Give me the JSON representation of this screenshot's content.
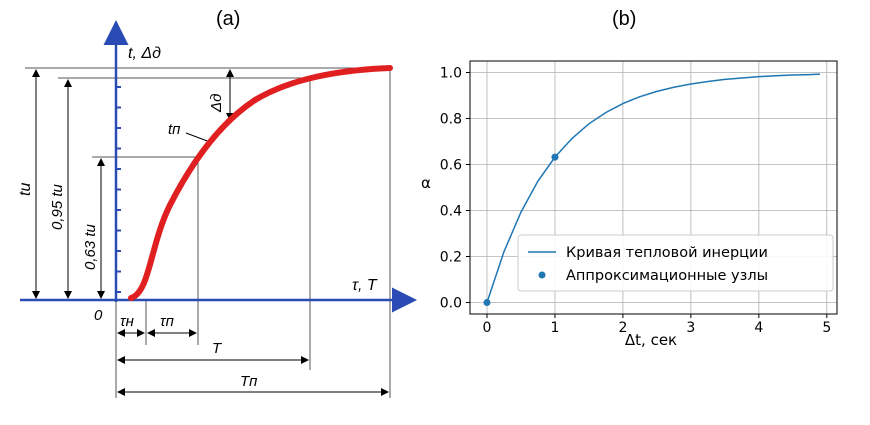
{
  "panel_a": {
    "label": "(a)",
    "y_axis_label": "t, Δд",
    "x_axis_label": "τ, T",
    "origin_label": "0",
    "curve_label": "tп",
    "delta_label": "Δд",
    "dim_full_label": "tи",
    "dim_095_label": "0,95 tи",
    "dim_063_label": "0,63 tи",
    "tau_n_label": "τн",
    "tau_p_label": "τп",
    "T_label": "T",
    "Tp_label": "Tп",
    "curve_color": "#e02020",
    "axis_color": "#2a4bb3"
  },
  "panel_b": {
    "label": "(b)",
    "line_color": "#1f77b4",
    "point_color": "#1f77b4"
  },
  "chart_data": {
    "type": "line",
    "xlabel": "Δt, сек",
    "ylabel": "α",
    "xlim": [
      -0.25,
      5.15
    ],
    "ylim": [
      -0.05,
      1.05
    ],
    "xticks": [
      "0",
      "1",
      "2",
      "3",
      "4",
      "5"
    ],
    "yticks": [
      "0.0",
      "0.2",
      "0.4",
      "0.6",
      "0.8",
      "1.0"
    ],
    "grid": true,
    "legend_position": "lower-right",
    "series": [
      {
        "name": "Кривая тепловой инерции",
        "kind": "line",
        "x": [
          0,
          0.25,
          0.5,
          0.75,
          1.0,
          1.25,
          1.5,
          1.75,
          2.0,
          2.25,
          2.5,
          2.75,
          3.0,
          3.25,
          3.5,
          3.75,
          4.0,
          4.25,
          4.5,
          4.75,
          4.9
        ],
        "y": [
          0.0,
          0.221,
          0.393,
          0.528,
          0.632,
          0.713,
          0.777,
          0.826,
          0.865,
          0.895,
          0.918,
          0.936,
          0.95,
          0.961,
          0.97,
          0.976,
          0.982,
          0.986,
          0.989,
          0.991,
          0.993
        ]
      },
      {
        "name": "Аппроксимационные узлы",
        "kind": "scatter",
        "x": [
          0,
          1
        ],
        "y": [
          0.0,
          0.632
        ]
      }
    ]
  }
}
